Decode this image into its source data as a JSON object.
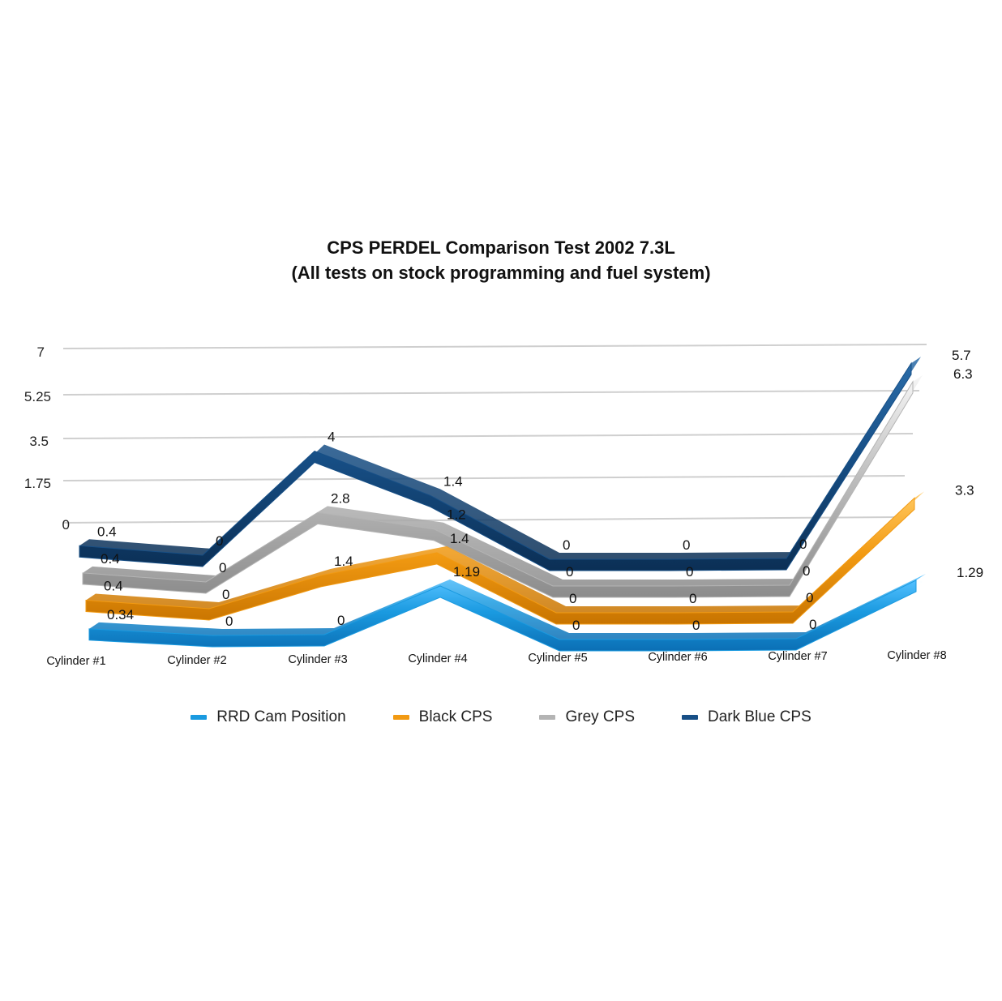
{
  "chart_data": {
    "type": "line",
    "title": "CPS PERDEL Comparison Test 2002 7.3L",
    "subtitle": "(All tests on stock programming and fuel system)",
    "categories": [
      "Cylinder #1",
      "Cylinder #2",
      "Cylinder #3",
      "Cylinder #4",
      "Cylinder #5",
      "Cylinder #6",
      "Cylinder #7",
      "Cylinder #8"
    ],
    "y_ticks": [
      "7",
      "5.25",
      "3.5",
      "1.75",
      "0"
    ],
    "ylim": [
      0,
      7
    ],
    "grid": true,
    "legend_position": "bottom",
    "series": [
      {
        "name": "RRD Cam Position",
        "color": "#1a9ae0",
        "values": [
          0.34,
          0,
          0,
          1.19,
          0,
          0,
          0,
          1.29
        ],
        "labels": [
          "0.34",
          "0",
          "0",
          "1.19",
          "0",
          "0",
          "0",
          "1.29"
        ]
      },
      {
        "name": "Black CPS",
        "color": "#f29a12",
        "values": [
          0.4,
          0,
          1.4,
          1.4,
          0,
          0,
          0,
          3.3
        ],
        "labels": [
          "0.4",
          "0",
          "1.4",
          "1.4",
          "0",
          "0",
          "0",
          "3.3"
        ]
      },
      {
        "name": "Grey CPS",
        "color": "#b4b4b4",
        "values": [
          0.4,
          0,
          2.8,
          1.2,
          0,
          0,
          0,
          6.3
        ],
        "labels": [
          "0.4",
          "0",
          "2.8",
          "1.2",
          "0",
          "0",
          "0",
          "6.3"
        ]
      },
      {
        "name": "Dark Blue CPS",
        "color": "#174f86",
        "values": [
          0.4,
          0,
          4,
          1.4,
          0,
          0,
          0,
          5.7
        ],
        "labels": [
          "0.4",
          "0",
          "4",
          "1.4",
          "0",
          "0",
          "0",
          "5.7"
        ]
      }
    ]
  }
}
